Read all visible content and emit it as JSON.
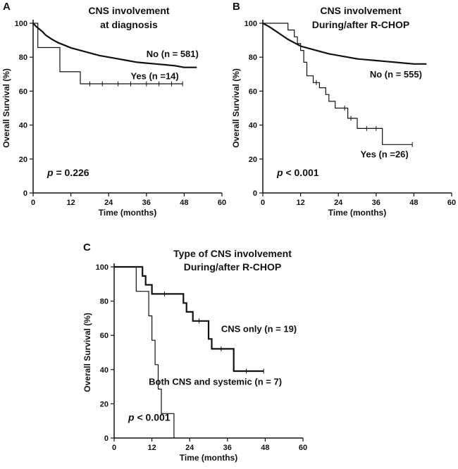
{
  "chart_data": [
    {
      "type": "line",
      "panel": "A",
      "title_lines": [
        "CNS involvement",
        "at diagnosis"
      ],
      "xlabel": "Time (months)",
      "ylabel": "Overall Survival (%)",
      "xlim": [
        0,
        60
      ],
      "ylim": [
        0,
        100
      ],
      "xticks": [
        "0",
        "12",
        "24",
        "36",
        "48",
        "60"
      ],
      "yticks": [
        "0",
        "20",
        "40",
        "60",
        "80",
        "100"
      ],
      "pvalue_prefix": "p",
      "pvalue_text": " = 0.226",
      "series": [
        {
          "name": "No (n = 581)",
          "label_x": 36,
          "label_y": 80,
          "line_width": 2.2,
          "x": [
            0,
            1,
            2,
            3,
            4,
            6,
            8,
            10,
            12,
            15,
            18,
            21,
            24,
            27,
            30,
            33,
            36,
            39,
            42,
            45,
            48,
            50,
            52
          ],
          "y": [
            100,
            98,
            96.5,
            95,
            93,
            90.5,
            88.5,
            87,
            85.5,
            84,
            82.5,
            81,
            80,
            79,
            78,
            77,
            76.5,
            76,
            75.5,
            75,
            74,
            74,
            74
          ],
          "censor_x": [],
          "censor_y": []
        },
        {
          "name": "Yes (n =14)",
          "label_x": 31,
          "label_y": 67,
          "line_width": 1.2,
          "x": [
            0,
            1.5,
            1.5,
            8.5,
            8.5,
            15,
            15,
            47.5
          ],
          "y": [
            100,
            100,
            85.7,
            85.7,
            71.4,
            71.4,
            64.3,
            64.3
          ],
          "censor_x": [
            18,
            22,
            27,
            31,
            36,
            40,
            44,
            47.5
          ],
          "censor_y": [
            64.3,
            64.3,
            64.3,
            64.3,
            64.3,
            64.3,
            64.3,
            64.3
          ]
        }
      ]
    },
    {
      "type": "line",
      "panel": "B",
      "title_lines": [
        "CNS involvement",
        "During/after R-CHOP"
      ],
      "xlabel": "Time  (months)",
      "ylabel": "Overall Survival (%)",
      "xlim": [
        0,
        60
      ],
      "ylim": [
        0,
        100
      ],
      "xticks": [
        "0",
        "12",
        "24",
        "36",
        "48",
        "60"
      ],
      "yticks": [
        "0",
        "20",
        "40",
        "60",
        "80",
        "100"
      ],
      "pvalue_prefix": "p",
      "pvalue_text": " < 0.001",
      "series": [
        {
          "name": "No (n = 555)",
          "label_x": 34,
          "label_y": 68,
          "line_width": 2.2,
          "x": [
            0,
            2,
            4,
            6,
            8,
            10,
            12,
            15,
            18,
            21,
            24,
            27,
            30,
            33,
            36,
            39,
            42,
            45,
            48,
            50,
            52
          ],
          "y": [
            100,
            98,
            95.5,
            93,
            90.5,
            88.5,
            86.5,
            85,
            83.5,
            82,
            81,
            80,
            79,
            78.5,
            78,
            77.5,
            77,
            76.5,
            76,
            76,
            76
          ],
          "censor_x": [],
          "censor_y": []
        },
        {
          "name": "Yes (n =26)",
          "label_x": 31,
          "label_y": 21,
          "line_width": 1.2,
          "x": [
            0,
            8,
            8,
            10,
            10,
            11,
            11,
            12,
            12,
            13,
            13,
            14,
            14,
            16,
            16,
            18,
            18,
            20,
            20,
            21,
            21,
            23,
            23,
            25,
            25,
            27,
            27,
            30,
            30,
            38,
            38,
            47.5
          ],
          "y": [
            100,
            100,
            96,
            96,
            92,
            92,
            88,
            88,
            84,
            84,
            77,
            77,
            69,
            69,
            65,
            65,
            62,
            62,
            58,
            58,
            54,
            54,
            50,
            50,
            50,
            50,
            44,
            44,
            38,
            38,
            28.5,
            28.5
          ],
          "censor_x": [
            17,
            26,
            28,
            33,
            36,
            47.5
          ],
          "censor_y": [
            65,
            50,
            44,
            38,
            38,
            28.5
          ]
        }
      ]
    },
    {
      "type": "line",
      "panel": "C",
      "title_lines": [
        "Type of CNS involvement",
        "During/after R-CHOP"
      ],
      "xlabel": "Time (months)",
      "ylabel": "Overall Survival (%)",
      "xlim": [
        0,
        60
      ],
      "ylim": [
        0,
        100
      ],
      "xticks": [
        "0",
        "12",
        "24",
        "36",
        "48",
        "60"
      ],
      "yticks": [
        "0",
        "20",
        "40",
        "60",
        "80",
        "100"
      ],
      "pvalue_prefix": "p",
      "pvalue_text": " < 0.001",
      "series": [
        {
          "name": "CNS only (n = 19)",
          "label_x": 34,
          "label_y": 62,
          "line_width": 2.2,
          "x": [
            0,
            9,
            9,
            10,
            10,
            12,
            12,
            22,
            22,
            23,
            23,
            25,
            25,
            30,
            30,
            31,
            31,
            38,
            38,
            47.5
          ],
          "y": [
            100,
            100,
            94.7,
            94.7,
            89.5,
            89.5,
            84.2,
            84.2,
            78.9,
            78.9,
            73.7,
            73.7,
            68.4,
            68.4,
            57.9,
            57.9,
            52.1,
            52.1,
            39.1,
            39.1
          ],
          "censor_x": [
            16,
            27,
            34,
            42,
            47.5
          ],
          "censor_y": [
            84.2,
            68.4,
            52.1,
            39.1,
            39.1
          ]
        },
        {
          "name": "Both CNS and systemic (n = 7)",
          "label_x": 11,
          "label_y": 31,
          "line_width": 1.2,
          "x": [
            0,
            7,
            7,
            11,
            11,
            12,
            12,
            13,
            13,
            14,
            14,
            15,
            15,
            19,
            19
          ],
          "y": [
            100,
            100,
            85.7,
            85.7,
            71.4,
            71.4,
            57.1,
            57.1,
            42.9,
            42.9,
            28.6,
            28.6,
            14.3,
            14.3,
            0
          ],
          "censor_x": [],
          "censor_y": []
        }
      ]
    }
  ]
}
